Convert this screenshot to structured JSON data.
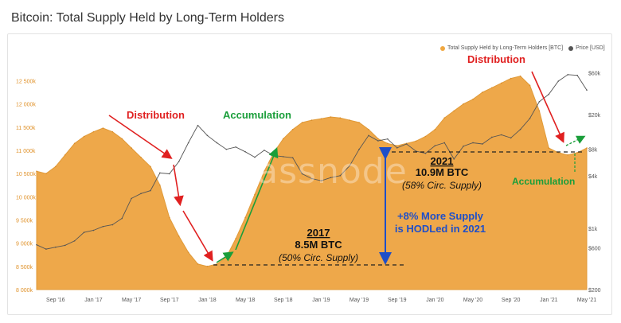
{
  "title": "Bitcoin: Total Supply Held by Long-Term Holders",
  "legend": [
    {
      "label": "Total Supply Held by Long-Term Holders [BTC]",
      "color": "#f0a840"
    },
    {
      "label": "Price [USD]",
      "color": "#555555"
    }
  ],
  "watermark": "glassnode",
  "colors": {
    "supply": "#eea84a",
    "price": "#555555",
    "red": "#e02020",
    "green": "#1a9e3a",
    "blue": "#1f4fc8"
  },
  "annotations": {
    "distribution_1": "Distribution",
    "distribution_2": "Distribution",
    "accumulation_1": "Accumulation",
    "accumulation_2": "Accumulation",
    "y2017": "2017",
    "btc2017": "8.5M BTC",
    "circ2017": "(50% Circ. Supply)",
    "y2021": "2021",
    "btc2021": "10.9M BTC",
    "circ2021": "(58% Circ. Supply)",
    "more_supply_1": "+8% More Supply",
    "more_supply_2": "is HODLed in 2021"
  },
  "chart_data": {
    "type": "area",
    "title": "Bitcoin: Total Supply Held by Long-Term Holders",
    "x_ticks": [
      "Sep '16",
      "Jan '17",
      "May '17",
      "Sep '17",
      "Jan '18",
      "May '18",
      "Sep '18",
      "Jan '19",
      "May '19",
      "Sep '19",
      "Jan '20",
      "May '20",
      "Sep '20",
      "Jan '21",
      "May '21"
    ],
    "y_left_ticks": [
      "8 000k",
      "8 500k",
      "9 000k",
      "9 500k",
      "10 000k",
      "10 500k",
      "11 000k",
      "11 500k",
      "12 000k",
      "12 500k"
    ],
    "y_right_ticks": [
      "$60k",
      "$20k",
      "$8k",
      "$4k",
      "$1k",
      "$600",
      "$200"
    ],
    "ylim_left": [
      8000000,
      12800000
    ],
    "ylim_right_log": [
      200,
      70000
    ],
    "right_scale": "log",
    "series": [
      {
        "name": "Total Supply Held by Long-Term Holders [BTC]",
        "x": [
          "2016-07",
          "2016-08",
          "2016-09",
          "2016-10",
          "2016-11",
          "2016-12",
          "2017-01",
          "2017-02",
          "2017-03",
          "2017-04",
          "2017-05",
          "2017-06",
          "2017-07",
          "2017-08",
          "2017-09",
          "2017-10",
          "2017-11",
          "2017-12",
          "2018-01",
          "2018-02",
          "2018-03",
          "2018-04",
          "2018-05",
          "2018-06",
          "2018-07",
          "2018-08",
          "2018-09",
          "2018-10",
          "2018-11",
          "2018-12",
          "2019-01",
          "2019-02",
          "2019-03",
          "2019-04",
          "2019-05",
          "2019-06",
          "2019-07",
          "2019-08",
          "2019-09",
          "2019-10",
          "2019-11",
          "2019-12",
          "2020-01",
          "2020-02",
          "2020-03",
          "2020-04",
          "2020-05",
          "2020-06",
          "2020-07",
          "2020-08",
          "2020-09",
          "2020-10",
          "2020-11",
          "2020-12",
          "2021-01",
          "2021-02",
          "2021-03",
          "2021-04",
          "2021-05"
        ],
        "values": [
          10550000,
          10500000,
          10650000,
          10900000,
          11150000,
          11300000,
          11400000,
          11480000,
          11400000,
          11250000,
          11050000,
          10850000,
          10650000,
          10250000,
          9550000,
          9150000,
          8800000,
          8550000,
          8500000,
          8550000,
          8700000,
          9100000,
          9550000,
          10050000,
          10550000,
          10950000,
          11250000,
          11450000,
          11600000,
          11650000,
          11680000,
          11720000,
          11700000,
          11650000,
          11600000,
          11450000,
          11250000,
          11150000,
          11100000,
          11150000,
          11200000,
          11300000,
          11450000,
          11700000,
          11850000,
          12000000,
          12100000,
          12250000,
          12350000,
          12450000,
          12550000,
          12600000,
          12400000,
          11850000,
          11050000,
          10950000,
          10900000,
          10950000,
          11050000
        ]
      },
      {
        "name": "Price [USD]",
        "x": [
          "2016-07",
          "2016-08",
          "2016-09",
          "2016-10",
          "2016-11",
          "2016-12",
          "2017-01",
          "2017-02",
          "2017-03",
          "2017-04",
          "2017-05",
          "2017-06",
          "2017-07",
          "2017-08",
          "2017-09",
          "2017-10",
          "2017-11",
          "2017-12",
          "2018-01",
          "2018-02",
          "2018-03",
          "2018-04",
          "2018-05",
          "2018-06",
          "2018-07",
          "2018-08",
          "2018-09",
          "2018-10",
          "2018-11",
          "2018-12",
          "2019-01",
          "2019-02",
          "2019-03",
          "2019-04",
          "2019-05",
          "2019-06",
          "2019-07",
          "2019-08",
          "2019-09",
          "2019-10",
          "2019-11",
          "2019-12",
          "2020-01",
          "2020-02",
          "2020-03",
          "2020-04",
          "2020-05",
          "2020-06",
          "2020-07",
          "2020-08",
          "2020-09",
          "2020-10",
          "2020-11",
          "2020-12",
          "2021-01",
          "2021-02",
          "2021-03",
          "2021-04",
          "2021-05"
        ],
        "values": [
          650,
          580,
          610,
          640,
          720,
          900,
          950,
          1050,
          1100,
          1300,
          2200,
          2500,
          2700,
          4300,
          4200,
          5800,
          9500,
          15000,
          11500,
          9500,
          8000,
          8500,
          7500,
          6500,
          7800,
          6800,
          6600,
          6400,
          4200,
          3700,
          3500,
          3800,
          4000,
          5200,
          8000,
          11500,
          10000,
          10500,
          8300,
          9200,
          7600,
          7200,
          8800,
          9500,
          6200,
          8700,
          9500,
          9200,
          11000,
          11700,
          10800,
          13500,
          18000,
          28000,
          34000,
          48000,
          57000,
          56000,
          38000
        ]
      }
    ]
  }
}
